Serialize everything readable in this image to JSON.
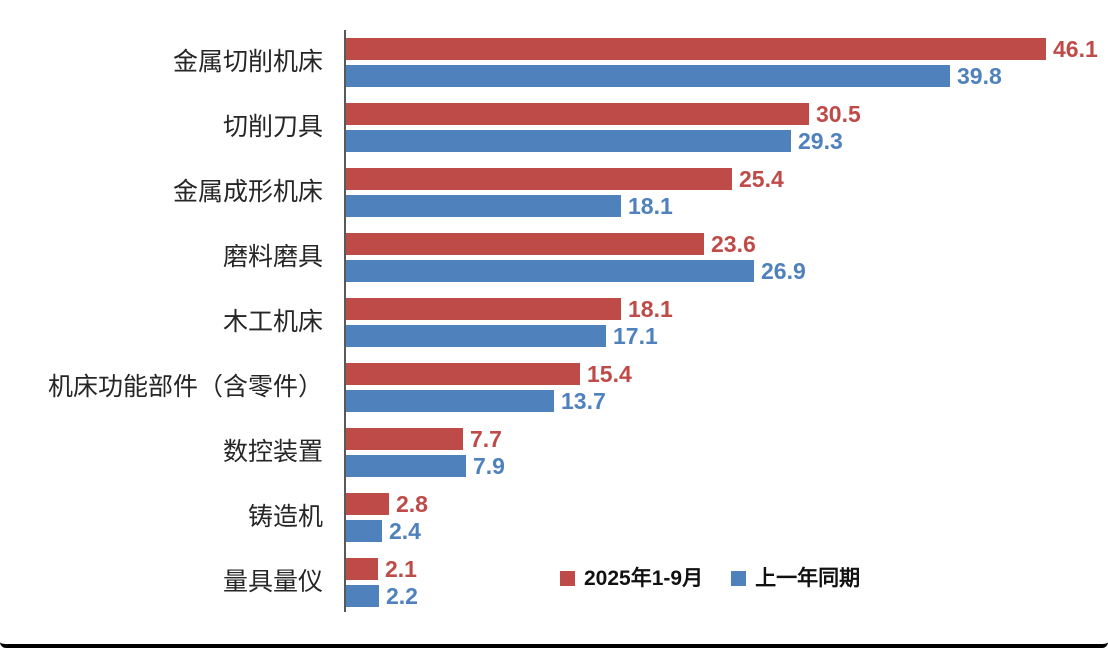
{
  "chart_data": {
    "type": "bar",
    "orientation": "horizontal",
    "title": "",
    "categories": [
      "金属切削机床",
      "切削刀具",
      "金属成形机床",
      "磨料磨具",
      "木工机床",
      "机床功能部件（含零件）",
      "数控装置",
      "铸造机",
      "量具量仪"
    ],
    "series": [
      {
        "name": "2025年1-9月",
        "color": "#be4b48",
        "values": [
          46.1,
          30.5,
          25.4,
          23.6,
          18.1,
          15.4,
          7.7,
          2.8,
          2.1
        ]
      },
      {
        "name": "上一年同期",
        "color": "#4f81bd",
        "values": [
          39.8,
          29.3,
          18.1,
          26.9,
          17.1,
          13.7,
          7.9,
          2.4,
          2.2
        ]
      }
    ],
    "value_labels_shown": true,
    "grid": false,
    "legend_position": "bottom-inside",
    "x_axis": {
      "ticks_visible": false,
      "implied_range": [
        0,
        46.1
      ]
    },
    "axis_line_color": "#595959"
  }
}
